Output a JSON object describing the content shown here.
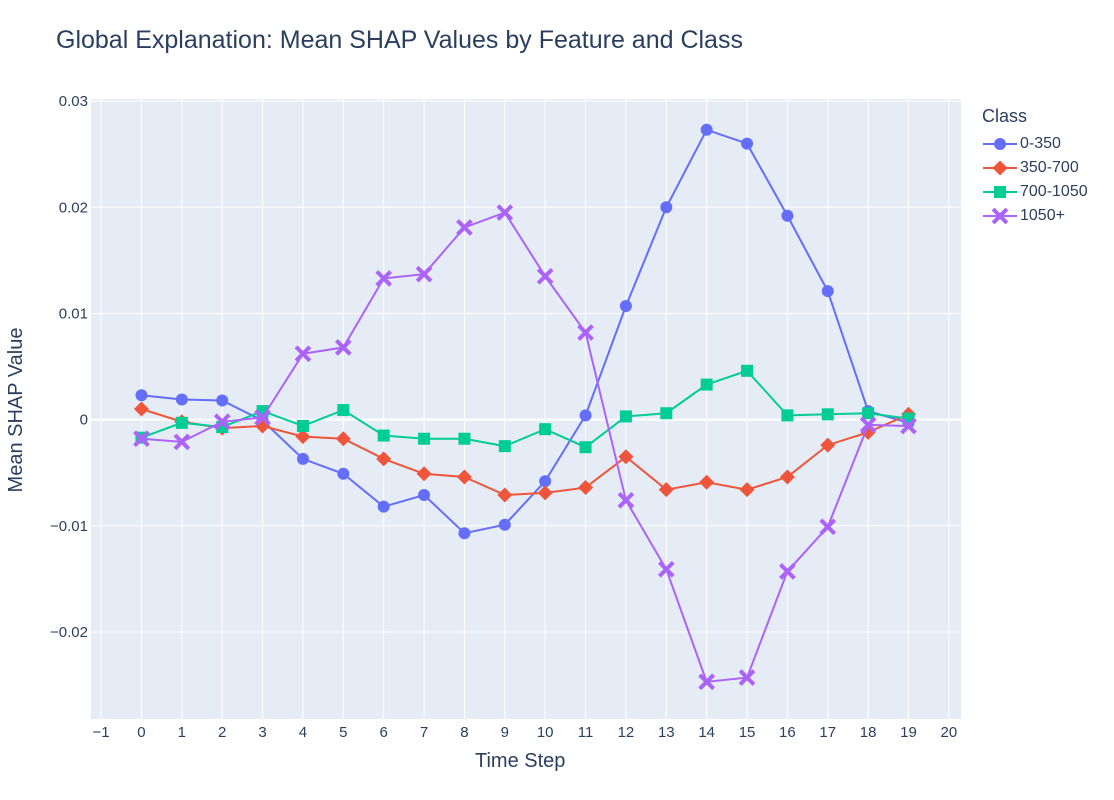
{
  "chart_data": {
    "type": "line",
    "title": "Global Explanation: Mean SHAP Values by Feature and Class",
    "xlabel": "Time Step",
    "ylabel": "Mean SHAP Value",
    "xlim": [
      -1.25,
      20.3
    ],
    "ylim": [
      -0.0282,
      0.0302
    ],
    "x_ticks": [
      -1,
      0,
      1,
      2,
      3,
      4,
      5,
      6,
      7,
      8,
      9,
      10,
      11,
      12,
      13,
      14,
      15,
      16,
      17,
      18,
      19,
      20
    ],
    "x_tick_labels": [
      "−1",
      "0",
      "1",
      "2",
      "3",
      "4",
      "5",
      "6",
      "7",
      "8",
      "9",
      "10",
      "11",
      "12",
      "13",
      "14",
      "15",
      "16",
      "17",
      "18",
      "19",
      "20"
    ],
    "y_ticks": [
      -0.02,
      -0.01,
      0,
      0.01,
      0.02,
      0.03
    ],
    "y_tick_labels": [
      "−0.02",
      "−0.01",
      "0",
      "0.01",
      "0.02",
      "0.03"
    ],
    "grid": true,
    "legend_position": "top-right outside",
    "legend_title": "Class",
    "x": [
      0,
      1,
      2,
      3,
      4,
      5,
      6,
      7,
      8,
      9,
      10,
      11,
      12,
      13,
      14,
      15,
      16,
      17,
      18,
      19
    ],
    "series": [
      {
        "name": "0-350",
        "color": "#636efa",
        "marker": "circle",
        "values": [
          0.0023,
          0.0019,
          0.0018,
          -0.0001,
          -0.0037,
          -0.0051,
          -0.0082,
          -0.0071,
          -0.0107,
          -0.0099,
          -0.0058,
          0.0004,
          0.0107,
          0.02,
          0.0273,
          0.026,
          0.0192,
          0.0121,
          0.0008,
          -0.0003
        ]
      },
      {
        "name": "350-700",
        "color": "#ef553b",
        "marker": "diamond",
        "values": [
          0.001,
          -0.0002,
          -0.0008,
          -0.0006,
          -0.0016,
          -0.0018,
          -0.0037,
          -0.0051,
          -0.0054,
          -0.0071,
          -0.0069,
          -0.0064,
          -0.0035,
          -0.0066,
          -0.0059,
          -0.0066,
          -0.0054,
          -0.0024,
          -0.0012,
          0.0005
        ]
      },
      {
        "name": "700-1050",
        "color": "#00cc96",
        "marker": "square",
        "values": [
          -0.0017,
          -0.0003,
          -0.0007,
          0.0008,
          -0.0006,
          0.0009,
          -0.0015,
          -0.0018,
          -0.0018,
          -0.0025,
          -0.0009,
          -0.0026,
          0.0003,
          0.0006,
          0.0033,
          0.0046,
          0.0004,
          0.0005,
          0.0006,
          0.0001
        ]
      },
      {
        "name": "1050+",
        "color": "#ab63fa",
        "marker": "x",
        "values": [
          -0.0018,
          -0.0021,
          -0.0002,
          0.0002,
          0.0062,
          0.0068,
          0.0133,
          0.0137,
          0.0181,
          0.0195,
          0.0135,
          0.0082,
          -0.0076,
          -0.0141,
          -0.0247,
          -0.0243,
          -0.0143,
          -0.0101,
          -0.0005,
          -0.0006
        ]
      }
    ]
  },
  "style": {
    "plot_bg": "#e5ecf6",
    "grid_color": "#ffffff",
    "text_color": "#2a3f5f"
  }
}
